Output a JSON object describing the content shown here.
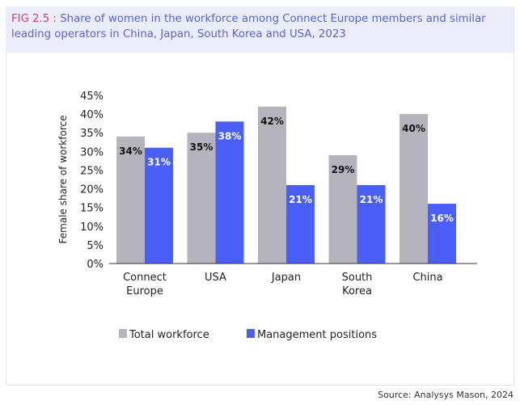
{
  "header": {
    "fig_label": "FIG 2.5 :",
    "title": "Share of women in the workforce among Connect Europe members and similar leading operators in China, Japan, South Korea and USA, 2023"
  },
  "chart_data": {
    "type": "bar",
    "categories": [
      [
        "Connect",
        "Europe"
      ],
      [
        "USA"
      ],
      [
        "Japan"
      ],
      [
        "South",
        "Korea"
      ],
      [
        "China"
      ]
    ],
    "series": [
      {
        "name": "Total workforce",
        "color": "#b5b3bb",
        "values": [
          34,
          35,
          42,
          29,
          40
        ],
        "labels": [
          "34%",
          "35%",
          "42%",
          "29%",
          "40%"
        ],
        "label_color": "#111111"
      },
      {
        "name": "Management positions",
        "color": "#4a5ff7",
        "values": [
          31,
          38,
          21,
          21,
          16
        ],
        "labels": [
          "31%",
          "38%",
          "21%",
          "21%",
          "16%"
        ],
        "label_color": "#ffffff"
      }
    ],
    "ylabel": "Female share of workforce",
    "ylim": [
      0,
      45
    ],
    "yticks": [
      "0%",
      "5%",
      "10%",
      "15%",
      "20%",
      "25%",
      "30%",
      "35%",
      "40%",
      "45%"
    ],
    "grid": false,
    "legend": "bottom"
  },
  "source": "Source: Analysys Mason, 2024"
}
